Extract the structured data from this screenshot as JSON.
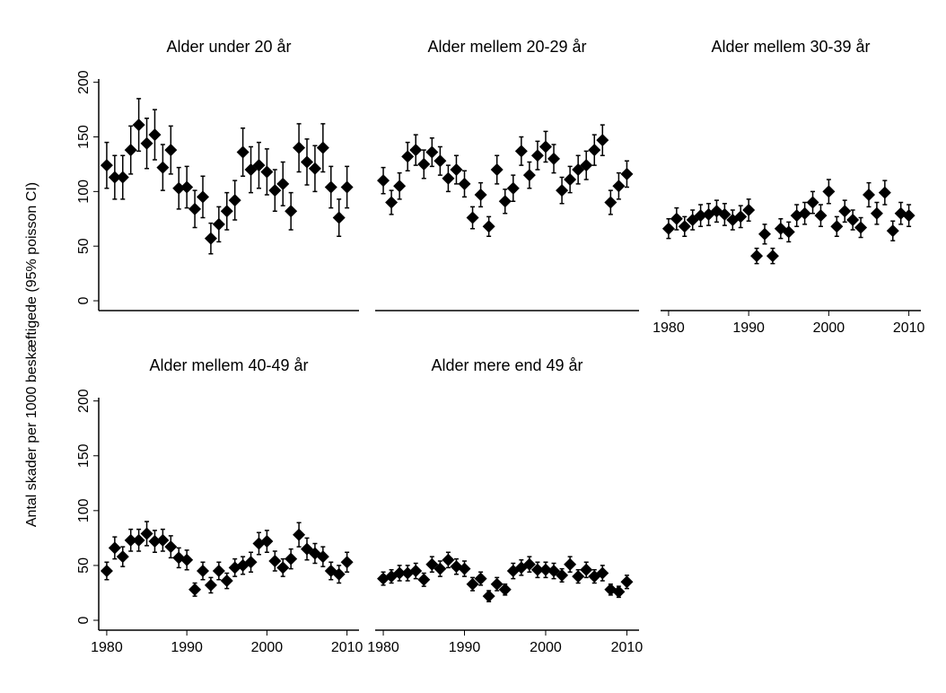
{
  "ylabel": "Antal skader per 1000 beskæftigede (95% poisson CI)",
  "chart_data": [
    {
      "type": "scatter",
      "title": "Alder under 20 år",
      "x": [
        1980,
        1981,
        1982,
        1983,
        1984,
        1985,
        1986,
        1987,
        1988,
        1989,
        1990,
        1991,
        1992,
        1993,
        1994,
        1995,
        1996,
        1997,
        1998,
        1999,
        2000,
        2001,
        2002,
        2003,
        2004,
        2005,
        2006,
        2007,
        2008,
        2009,
        2010
      ],
      "values": [
        124,
        113,
        113,
        138,
        161,
        144,
        152,
        122,
        138,
        103,
        104,
        84,
        95,
        57,
        70,
        82,
        92,
        136,
        120,
        124,
        118,
        101,
        107,
        82,
        140,
        127,
        121,
        140,
        104,
        76,
        104
      ],
      "error": [
        21,
        20,
        20,
        22,
        24,
        23,
        23,
        21,
        22,
        19,
        19,
        17,
        19,
        14,
        16,
        17,
        18,
        22,
        21,
        21,
        21,
        19,
        20,
        17,
        22,
        21,
        21,
        22,
        19,
        17,
        19
      ],
      "color": "#000000",
      "xlim": [
        1979,
        2011.5
      ],
      "ylim": [
        -9,
        203
      ],
      "yticks": [
        0,
        50,
        100,
        150,
        200
      ]
    },
    {
      "type": "scatter",
      "title": "Alder mellem 20-29 år",
      "x": [
        1980,
        1981,
        1982,
        1983,
        1984,
        1985,
        1986,
        1987,
        1988,
        1989,
        1990,
        1991,
        1992,
        1993,
        1994,
        1995,
        1996,
        1997,
        1998,
        1999,
        2000,
        2001,
        2002,
        2003,
        2004,
        2005,
        2006,
        2007,
        2008,
        2009,
        2010
      ],
      "values": [
        110,
        90,
        105,
        132,
        138,
        125,
        136,
        128,
        112,
        120,
        107,
        76,
        97,
        68,
        120,
        91,
        103,
        137,
        115,
        133,
        141,
        130,
        101,
        111,
        120,
        124,
        138,
        147,
        90,
        105,
        116
      ],
      "error": [
        12,
        11,
        12,
        13,
        14,
        13,
        13,
        13,
        12,
        13,
        12,
        10,
        11,
        9,
        13,
        11,
        12,
        13,
        12,
        13,
        14,
        13,
        12,
        12,
        13,
        13,
        14,
        14,
        11,
        12,
        12
      ],
      "color": "#000000",
      "xlim": [
        1979,
        2011.5
      ],
      "ylim": [
        -9,
        203
      ]
    },
    {
      "type": "scatter",
      "title": "Alder mellem 30-39 år",
      "x": [
        1980,
        1981,
        1982,
        1983,
        1984,
        1985,
        1986,
        1987,
        1988,
        1989,
        1990,
        1991,
        1992,
        1993,
        1994,
        1995,
        1996,
        1997,
        1998,
        1999,
        2000,
        2001,
        2002,
        2003,
        2004,
        2005,
        2006,
        2007,
        2008,
        2009,
        2010
      ],
      "values": [
        66,
        75,
        68,
        74,
        78,
        79,
        82,
        79,
        74,
        77,
        83,
        41,
        61,
        41,
        66,
        63,
        78,
        80,
        90,
        78,
        100,
        68,
        82,
        74,
        67,
        97,
        80,
        99,
        64,
        80,
        78
      ],
      "error": [
        9,
        10,
        9,
        9,
        10,
        10,
        10,
        10,
        9,
        10,
        10,
        7,
        9,
        7,
        9,
        9,
        10,
        10,
        10,
        10,
        11,
        9,
        10,
        9,
        9,
        11,
        10,
        11,
        9,
        10,
        10
      ],
      "color": "#000000",
      "xlim": [
        1979,
        2011.5
      ],
      "ylim": [
        -9,
        203
      ],
      "xticks": [
        1980,
        1990,
        2000,
        2010
      ]
    },
    {
      "type": "scatter",
      "title": "Alder mellem 40-49 år",
      "x": [
        1980,
        1981,
        1982,
        1983,
        1984,
        1985,
        1986,
        1987,
        1988,
        1989,
        1990,
        1991,
        1992,
        1993,
        1994,
        1995,
        1996,
        1997,
        1998,
        1999,
        2000,
        2001,
        2002,
        2003,
        2004,
        2005,
        2006,
        2007,
        2008,
        2009,
        2010
      ],
      "values": [
        45,
        66,
        58,
        73,
        73,
        79,
        72,
        73,
        67,
        57,
        55,
        28,
        45,
        32,
        45,
        36,
        48,
        50,
        53,
        70,
        72,
        54,
        48,
        56,
        78,
        65,
        61,
        58,
        45,
        42,
        53
      ],
      "error": [
        8,
        10,
        9,
        10,
        10,
        11,
        10,
        10,
        10,
        9,
        9,
        6,
        8,
        7,
        8,
        7,
        8,
        8,
        9,
        10,
        10,
        9,
        8,
        9,
        11,
        10,
        9,
        9,
        8,
        8,
        9
      ],
      "color": "#000000",
      "xlim": [
        1979,
        2011.5
      ],
      "ylim": [
        -9,
        203
      ],
      "yticks": [
        0,
        50,
        100,
        150,
        200
      ],
      "xticks": [
        1980,
        1990,
        2000,
        2010
      ]
    },
    {
      "type": "scatter",
      "title": "Alder mere end 49 år",
      "x": [
        1980,
        1981,
        1982,
        1983,
        1984,
        1985,
        1986,
        1987,
        1988,
        1989,
        1990,
        1991,
        1992,
        1993,
        1994,
        1995,
        1996,
        1997,
        1998,
        1999,
        2000,
        2001,
        2002,
        2003,
        2004,
        2005,
        2006,
        2007,
        2008,
        2009,
        2010
      ],
      "values": [
        38,
        40,
        43,
        43,
        45,
        37,
        51,
        47,
        55,
        49,
        47,
        33,
        38,
        22,
        33,
        28,
        45,
        48,
        51,
        46,
        46,
        45,
        41,
        51,
        40,
        46,
        40,
        43,
        28,
        26,
        35
      ],
      "error": [
        6,
        6,
        7,
        7,
        7,
        6,
        7,
        7,
        7,
        7,
        7,
        6,
        6,
        5,
        6,
        5,
        7,
        7,
        7,
        7,
        7,
        7,
        6,
        7,
        6,
        7,
        6,
        7,
        5,
        5,
        6
      ],
      "color": "#000000",
      "xlim": [
        1979,
        2011.5
      ],
      "ylim": [
        -9,
        203
      ],
      "xticks": [
        1980,
        1990,
        2000,
        2010
      ]
    }
  ]
}
